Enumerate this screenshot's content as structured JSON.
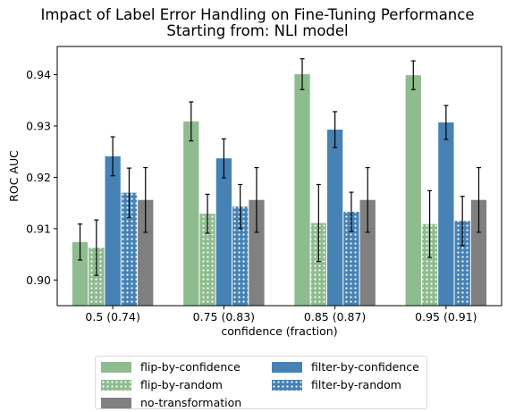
{
  "chart_data": {
    "type": "bar",
    "title": "Impact of Label Error Handling on Fine-Tuning Performance",
    "subtitle": "Starting from: NLI model",
    "xlabel": "confidence (fraction)",
    "ylabel": "ROC AUC",
    "ylim": [
      0.895,
      0.9455
    ],
    "yticks": [
      "0.90",
      "0.91",
      "0.92",
      "0.93",
      "0.94"
    ],
    "ytick_values": [
      0.9,
      0.91,
      0.92,
      0.93,
      0.94
    ],
    "categories": [
      "0.5 (0.74)",
      "0.75 (0.83)",
      "0.85 (0.87)",
      "0.95 (0.91)"
    ],
    "grid": false,
    "legend_position": "below",
    "series": [
      {
        "name": "flip-by-confidence",
        "color": "#8fbc8f",
        "hatch": "none",
        "values": [
          0.9074,
          0.9309,
          0.9401,
          0.9399
        ],
        "errors": [
          0.0035,
          0.0038,
          0.003,
          0.0028
        ]
      },
      {
        "name": "flip-by-random",
        "color": "#8fbc8f",
        "hatch": "dots",
        "values": [
          0.9063,
          0.9129,
          0.9111,
          0.9109
        ],
        "errors": [
          0.0054,
          0.0038,
          0.0075,
          0.0065
        ]
      },
      {
        "name": "filter-by-confidence",
        "color": "#4682b4",
        "hatch": "none",
        "values": [
          0.9241,
          0.9237,
          0.9293,
          0.9307
        ],
        "errors": [
          0.0038,
          0.0038,
          0.0035,
          0.0033
        ]
      },
      {
        "name": "filter-by-random",
        "color": "#4682b4",
        "hatch": "dots",
        "values": [
          0.917,
          0.9143,
          0.9133,
          0.9115
        ],
        "errors": [
          0.0048,
          0.0043,
          0.0038,
          0.0048
        ]
      },
      {
        "name": "no-transformation",
        "color": "#808080",
        "hatch": "none",
        "values": [
          0.9156,
          0.9156,
          0.9156,
          0.9156
        ],
        "errors": [
          0.0063,
          0.0063,
          0.0063,
          0.0063
        ]
      }
    ]
  }
}
